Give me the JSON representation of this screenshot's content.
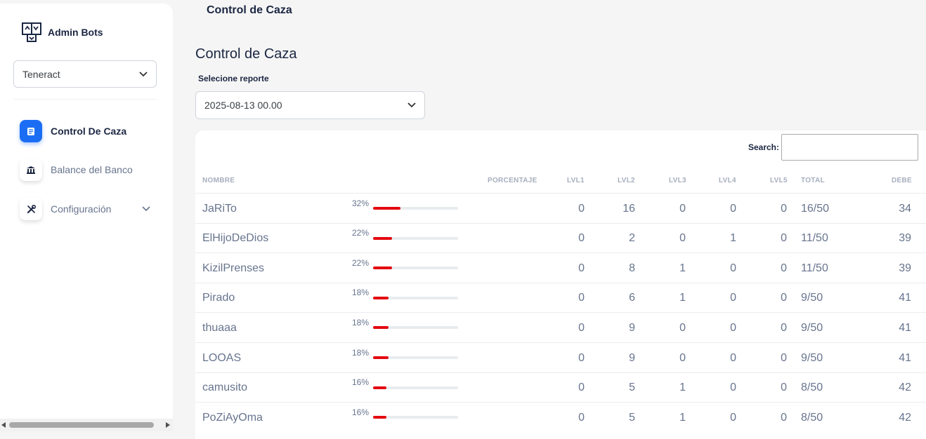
{
  "brand": {
    "name": "Admin Bots",
    "icon": "bot-logo-icon"
  },
  "org_select": {
    "value": "Teneract"
  },
  "nav": [
    {
      "label": "Control De Caza",
      "icon": "document-icon",
      "active": true
    },
    {
      "label": "Balance del Banco",
      "icon": "bank-icon",
      "active": false
    },
    {
      "label": "Configuración",
      "icon": "tools-icon",
      "active": false
    }
  ],
  "topbar": {
    "title": "Control de Caza"
  },
  "page": {
    "title": "Control de Caza",
    "report_label": "Selecione reporte",
    "report_value": "2025-08-13 00.00"
  },
  "table": {
    "search_label": "Search:",
    "search_value": "",
    "headers": {
      "nombre": "NOMBRE",
      "porcentaje": "PORCENTAJE",
      "lvl1": "LVL1",
      "lvl2": "LVL2",
      "lvl3": "LVL3",
      "lvl4": "LVL4",
      "lvl5": "LVL5",
      "total": "TOTAL",
      "debe": "DEBE"
    },
    "rows": [
      {
        "nombre": "JaRiTo",
        "pct": "32%",
        "pct_value": 0.32,
        "lvl1": "0",
        "lvl2": "16",
        "lvl3": "0",
        "lvl4": "0",
        "lvl5": "0",
        "total": "16/50",
        "debe": "34"
      },
      {
        "nombre": "ElHijoDeDios",
        "pct": "22%",
        "pct_value": 0.22,
        "lvl1": "0",
        "lvl2": "2",
        "lvl3": "0",
        "lvl4": "1",
        "lvl5": "0",
        "total": "11/50",
        "debe": "39"
      },
      {
        "nombre": "KizilPrenses",
        "pct": "22%",
        "pct_value": 0.22,
        "lvl1": "0",
        "lvl2": "8",
        "lvl3": "1",
        "lvl4": "0",
        "lvl5": "0",
        "total": "11/50",
        "debe": "39"
      },
      {
        "nombre": "Pirado",
        "pct": "18%",
        "pct_value": 0.18,
        "lvl1": "0",
        "lvl2": "6",
        "lvl3": "1",
        "lvl4": "0",
        "lvl5": "0",
        "total": "9/50",
        "debe": "41"
      },
      {
        "nombre": "thuaaa",
        "pct": "18%",
        "pct_value": 0.18,
        "lvl1": "0",
        "lvl2": "9",
        "lvl3": "0",
        "lvl4": "0",
        "lvl5": "0",
        "total": "9/50",
        "debe": "41"
      },
      {
        "nombre": "LOOAS",
        "pct": "18%",
        "pct_value": 0.18,
        "lvl1": "0",
        "lvl2": "9",
        "lvl3": "0",
        "lvl4": "0",
        "lvl5": "0",
        "total": "9/50",
        "debe": "41"
      },
      {
        "nombre": "camusito",
        "pct": "16%",
        "pct_value": 0.16,
        "lvl1": "0",
        "lvl2": "5",
        "lvl3": "1",
        "lvl4": "0",
        "lvl5": "0",
        "total": "8/50",
        "debe": "42"
      },
      {
        "nombre": "PoZiAyOma",
        "pct": "16%",
        "pct_value": 0.16,
        "lvl1": "0",
        "lvl2": "5",
        "lvl3": "1",
        "lvl4": "0",
        "lvl5": "0",
        "total": "8/50",
        "debe": "42"
      }
    ]
  },
  "colors": {
    "accent": "#1b6ef3",
    "progress": "#e4080f",
    "text_dark": "#1b2642",
    "text_muted": "#67748e"
  }
}
